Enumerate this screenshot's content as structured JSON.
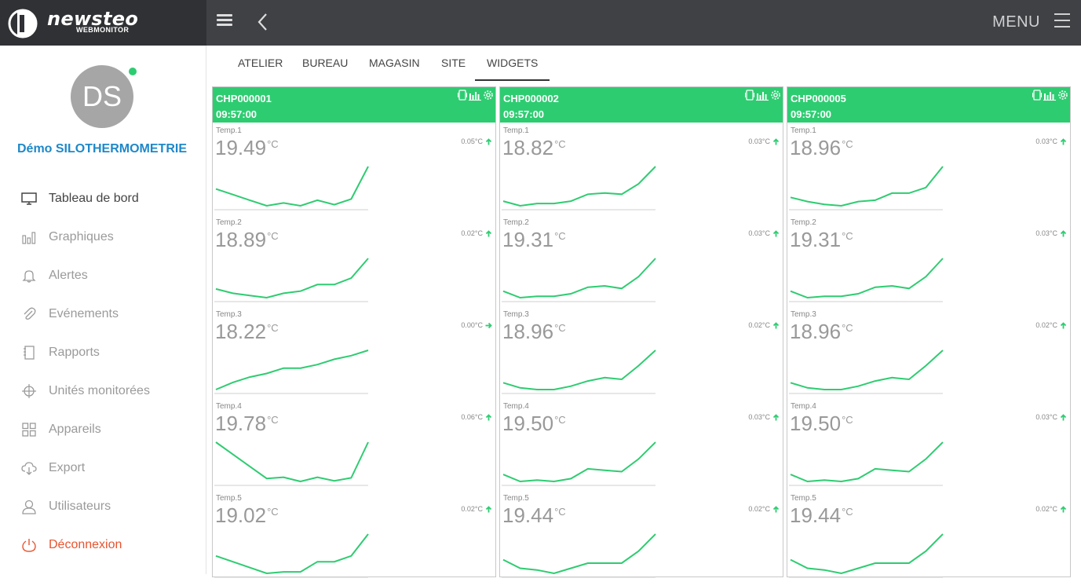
{
  "brand": {
    "name": "newsteo",
    "sub": "WEBMONITOR"
  },
  "header": {
    "menu_label": "MENU"
  },
  "user": {
    "initials": "DS",
    "name": "Démo SILOTHERMOMETRIE"
  },
  "nav": [
    {
      "label": "Tableau de bord",
      "icon": "monitor-icon"
    },
    {
      "label": "Graphiques",
      "icon": "bar-chart-icon"
    },
    {
      "label": "Alertes",
      "icon": "bell-icon"
    },
    {
      "label": "Evénements",
      "icon": "paperclip-icon"
    },
    {
      "label": "Rapports",
      "icon": "notebook-icon"
    },
    {
      "label": "Unités monitorées",
      "icon": "crosshair-icon"
    },
    {
      "label": "Appareils",
      "icon": "grid-icon"
    },
    {
      "label": "Export",
      "icon": "cloud-download-icon"
    },
    {
      "label": "Utilisateurs",
      "icon": "user-icon"
    },
    {
      "label": "Déconnexion",
      "icon": "power-icon"
    }
  ],
  "tabs": [
    "ATELIER",
    "BUREAU",
    "MAGASIN",
    "SITE",
    "WIDGETS"
  ],
  "active_tab": "WIDGETS",
  "colors": {
    "accent": "#2ecc71",
    "link": "#1e88c9",
    "logout": "#e8542e",
    "header": "#3f4145"
  },
  "cards": [
    {
      "id": "CHP000001",
      "time": "09:57:00",
      "sensors": [
        {
          "label": "Temp.1",
          "value": "19.49",
          "unit": "°C",
          "delta": "0.05°C",
          "trend": "up",
          "series": [
            19.45,
            19.44,
            19.43,
            19.42,
            19.425,
            19.42,
            19.43,
            19.422,
            19.432,
            19.49
          ]
        },
        {
          "label": "Temp.2",
          "value": "18.89",
          "unit": "°C",
          "delta": "0.02°C",
          "trend": "up",
          "series": [
            18.862,
            18.858,
            18.856,
            18.854,
            18.858,
            18.86,
            18.866,
            18.866,
            18.872,
            18.89
          ]
        },
        {
          "label": "Temp.3",
          "value": "18.22",
          "unit": "°C",
          "delta": "0.00°C",
          "trend": "right",
          "series": [
            18.212,
            18.214,
            18.2155,
            18.2165,
            18.218,
            18.218,
            18.219,
            18.2205,
            18.2215,
            18.223
          ]
        },
        {
          "label": "Temp.4",
          "value": "19.78",
          "unit": "°C",
          "delta": "0.06°C",
          "trend": "up",
          "series": [
            19.77,
            19.75,
            19.73,
            19.71,
            19.712,
            19.705,
            19.712,
            19.706,
            19.711,
            19.77
          ]
        },
        {
          "label": "Temp.5",
          "value": "19.02",
          "unit": "°C",
          "delta": "0.02°C",
          "trend": "up",
          "series": [
            19.006,
            19.002,
            18.998,
            18.994,
            18.995,
            18.995,
            19.002,
            19.002,
            19.006,
            19.021
          ]
        }
      ]
    },
    {
      "id": "CHP000002",
      "time": "09:57:00",
      "sensors": [
        {
          "label": "Temp.1",
          "value": "18.82",
          "unit": "°C",
          "delta": "0.03°C",
          "trend": "up",
          "series": [
            18.79,
            18.786,
            18.788,
            18.788,
            18.79,
            18.796,
            18.797,
            18.796,
            18.805,
            18.82
          ]
        },
        {
          "label": "Temp.2",
          "value": "19.31",
          "unit": "°C",
          "delta": "0.03°C",
          "trend": "up",
          "series": [
            19.285,
            19.28,
            19.281,
            19.281,
            19.283,
            19.288,
            19.289,
            19.287,
            19.296,
            19.31
          ]
        },
        {
          "label": "Temp.3",
          "value": "18.96",
          "unit": "°C",
          "delta": "0.02°C",
          "trend": "up",
          "series": [
            18.944,
            18.941,
            18.94,
            18.94,
            18.942,
            18.945,
            18.947,
            18.946,
            18.954,
            18.963
          ]
        },
        {
          "label": "Temp.4",
          "value": "19.50",
          "unit": "°C",
          "delta": "0.03°C",
          "trend": "up",
          "series": [
            19.477,
            19.472,
            19.473,
            19.472,
            19.474,
            19.481,
            19.48,
            19.479,
            19.488,
            19.5
          ]
        },
        {
          "label": "Temp.5",
          "value": "19.44",
          "unit": "°C",
          "delta": "0.02°C",
          "trend": "up",
          "series": [
            19.424,
            19.419,
            19.418,
            19.416,
            19.419,
            19.422,
            19.422,
            19.422,
            19.429,
            19.439
          ]
        }
      ]
    },
    {
      "id": "CHP000005",
      "time": "09:57:00",
      "sensors": [
        {
          "label": "Temp.1",
          "value": "18.96",
          "unit": "°C",
          "delta": "0.03°C",
          "trend": "up",
          "series": [
            18.938,
            18.935,
            18.933,
            18.932,
            18.935,
            18.936,
            18.941,
            18.941,
            18.945,
            18.96
          ]
        },
        {
          "label": "Temp.2",
          "value": "19.31",
          "unit": "°C",
          "delta": "0.03°C",
          "trend": "up",
          "series": [
            19.285,
            19.28,
            19.281,
            19.281,
            19.283,
            19.288,
            19.289,
            19.287,
            19.296,
            19.31
          ]
        },
        {
          "label": "Temp.3",
          "value": "18.96",
          "unit": "°C",
          "delta": "0.02°C",
          "trend": "up",
          "series": [
            18.944,
            18.941,
            18.94,
            18.94,
            18.942,
            18.945,
            18.947,
            18.946,
            18.954,
            18.963
          ]
        },
        {
          "label": "Temp.4",
          "value": "19.50",
          "unit": "°C",
          "delta": "0.03°C",
          "trend": "up",
          "series": [
            19.477,
            19.472,
            19.473,
            19.472,
            19.474,
            19.481,
            19.48,
            19.479,
            19.488,
            19.5
          ]
        },
        {
          "label": "Temp.5",
          "value": "19.44",
          "unit": "°C",
          "delta": "0.02°C",
          "trend": "up",
          "series": [
            19.424,
            19.419,
            19.418,
            19.416,
            19.419,
            19.422,
            19.422,
            19.422,
            19.429,
            19.439
          ]
        }
      ]
    }
  ]
}
